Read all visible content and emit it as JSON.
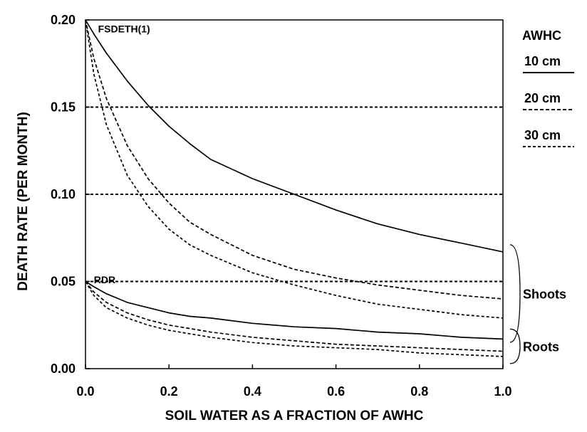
{
  "chart_data": {
    "type": "line",
    "xlabel": "SOIL WATER AS A FRACTION OF AWHC",
    "ylabel": "DEATH RATE (PER MONTH)",
    "xlim": [
      0.0,
      1.0
    ],
    "ylim": [
      0.0,
      0.2
    ],
    "xticks": [
      "0.0",
      "0.2",
      "0.4",
      "0.6",
      "0.8",
      "1.0"
    ],
    "yticks": [
      "0.00",
      "0.05",
      "0.10",
      "0.15",
      "0.20"
    ],
    "reference_lines_y": [
      0.05,
      0.1,
      0.15
    ],
    "legend": {
      "title": "AWHC",
      "entries": [
        {
          "label": "10 cm",
          "style": "solid"
        },
        {
          "label": "20 cm",
          "style": "dashed"
        },
        {
          "label": "30 cm",
          "style": "dotted"
        }
      ],
      "placement": "right"
    },
    "annotations": [
      {
        "text": "FSDETH(1)",
        "x": 0.03,
        "y": 0.195
      },
      {
        "text": "RDR",
        "x": 0.02,
        "y": 0.051
      }
    ],
    "groups": [
      {
        "label": "Shoots",
        "series_group": "shoots"
      },
      {
        "label": "Roots",
        "series_group": "roots"
      }
    ],
    "x": [
      0.0,
      0.02,
      0.05,
      0.1,
      0.15,
      0.2,
      0.25,
      0.3,
      0.4,
      0.5,
      0.6,
      0.7,
      0.8,
      0.9,
      1.0
    ],
    "series": [
      {
        "group": "shoots",
        "awhc": "10 cm",
        "style": "solid",
        "values": [
          0.2,
          0.192,
          0.181,
          0.165,
          0.151,
          0.139,
          0.129,
          0.12,
          0.109,
          0.1,
          0.091,
          0.083,
          0.077,
          0.072,
          0.067
        ]
      },
      {
        "group": "shoots",
        "awhc": "20 cm",
        "style": "dashed",
        "values": [
          0.2,
          0.178,
          0.155,
          0.128,
          0.109,
          0.095,
          0.084,
          0.077,
          0.065,
          0.057,
          0.052,
          0.048,
          0.045,
          0.042,
          0.04
        ]
      },
      {
        "group": "shoots",
        "awhc": "30 cm",
        "style": "dotted",
        "values": [
          0.2,
          0.169,
          0.14,
          0.111,
          0.093,
          0.08,
          0.071,
          0.065,
          0.055,
          0.048,
          0.042,
          0.037,
          0.034,
          0.031,
          0.029
        ]
      },
      {
        "group": "roots",
        "awhc": "10 cm",
        "style": "solid",
        "values": [
          0.05,
          0.047,
          0.043,
          0.038,
          0.035,
          0.032,
          0.03,
          0.029,
          0.026,
          0.024,
          0.023,
          0.021,
          0.02,
          0.018,
          0.017
        ]
      },
      {
        "group": "roots",
        "awhc": "20 cm",
        "style": "dashed",
        "values": [
          0.05,
          0.044,
          0.038,
          0.032,
          0.028,
          0.025,
          0.023,
          0.021,
          0.018,
          0.016,
          0.014,
          0.013,
          0.012,
          0.011,
          0.01
        ]
      },
      {
        "group": "roots",
        "awhc": "30 cm",
        "style": "dotted",
        "values": [
          0.05,
          0.042,
          0.035,
          0.029,
          0.025,
          0.022,
          0.02,
          0.018,
          0.015,
          0.013,
          0.012,
          0.011,
          0.009,
          0.008,
          0.007
        ]
      }
    ]
  }
}
